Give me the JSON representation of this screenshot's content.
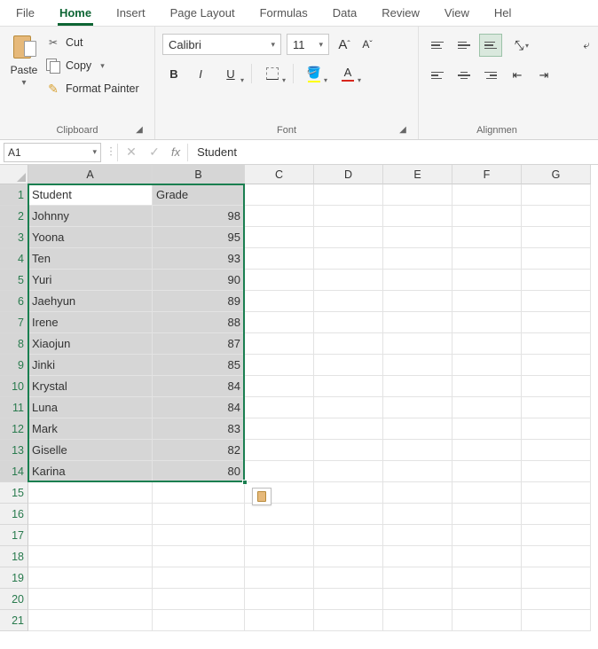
{
  "tabs": {
    "items": [
      "File",
      "Home",
      "Insert",
      "Page Layout",
      "Formulas",
      "Data",
      "Review",
      "View",
      "Hel"
    ],
    "active_index": 1
  },
  "ribbon": {
    "clipboard": {
      "group_label": "Clipboard",
      "paste_label": "Paste",
      "cut_label": "Cut",
      "copy_label": "Copy",
      "format_painter_label": "Format Painter"
    },
    "font": {
      "group_label": "Font",
      "font_name": "Calibri",
      "font_size": "11",
      "bold": "B",
      "italic": "I",
      "underline": "U",
      "font_a_label": "A"
    },
    "alignment": {
      "group_label": "Alignmen"
    }
  },
  "formula_bar": {
    "cell_ref": "A1",
    "fx_label": "fx",
    "value": "Student"
  },
  "grid": {
    "columns": [
      {
        "label": "A",
        "width": 140
      },
      {
        "label": "B",
        "width": 104
      },
      {
        "label": "C",
        "width": 78
      },
      {
        "label": "D",
        "width": 78
      },
      {
        "label": "E",
        "width": 78
      },
      {
        "label": "F",
        "width": 78
      },
      {
        "label": "G",
        "width": 78
      }
    ],
    "row_count": 21,
    "selected_cols": 2,
    "selected_rows": 14,
    "active_cell": {
      "row": 0,
      "col": 0
    },
    "headers": {
      "A": "Student",
      "B": "Grade"
    },
    "rows": [
      {
        "A": "Johnny",
        "B": 98
      },
      {
        "A": "Yoona",
        "B": 95
      },
      {
        "A": "Ten",
        "B": 93
      },
      {
        "A": "Yuri",
        "B": 90
      },
      {
        "A": "Jaehyun",
        "B": 89
      },
      {
        "A": "Irene",
        "B": 88
      },
      {
        "A": "Xiaojun",
        "B": 87
      },
      {
        "A": "Jinki",
        "B": 85
      },
      {
        "A": "Krystal",
        "B": 84
      },
      {
        "A": "Luna",
        "B": 84
      },
      {
        "A": "Mark",
        "B": 83
      },
      {
        "A": "Giselle",
        "B": 82
      },
      {
        "A": "Karina",
        "B": 80
      }
    ]
  },
  "colors": {
    "accent_green": "#1a7f50",
    "tab_green": "#0e6534",
    "ribbon_bg": "#f5f5f5",
    "header_bg": "#f0f0f0",
    "sel_fill": "#d6d6d6",
    "grid_line": "#e3e3e3",
    "fill_highlight": "#ffff00",
    "font_color_highlight": "#d8261c"
  }
}
